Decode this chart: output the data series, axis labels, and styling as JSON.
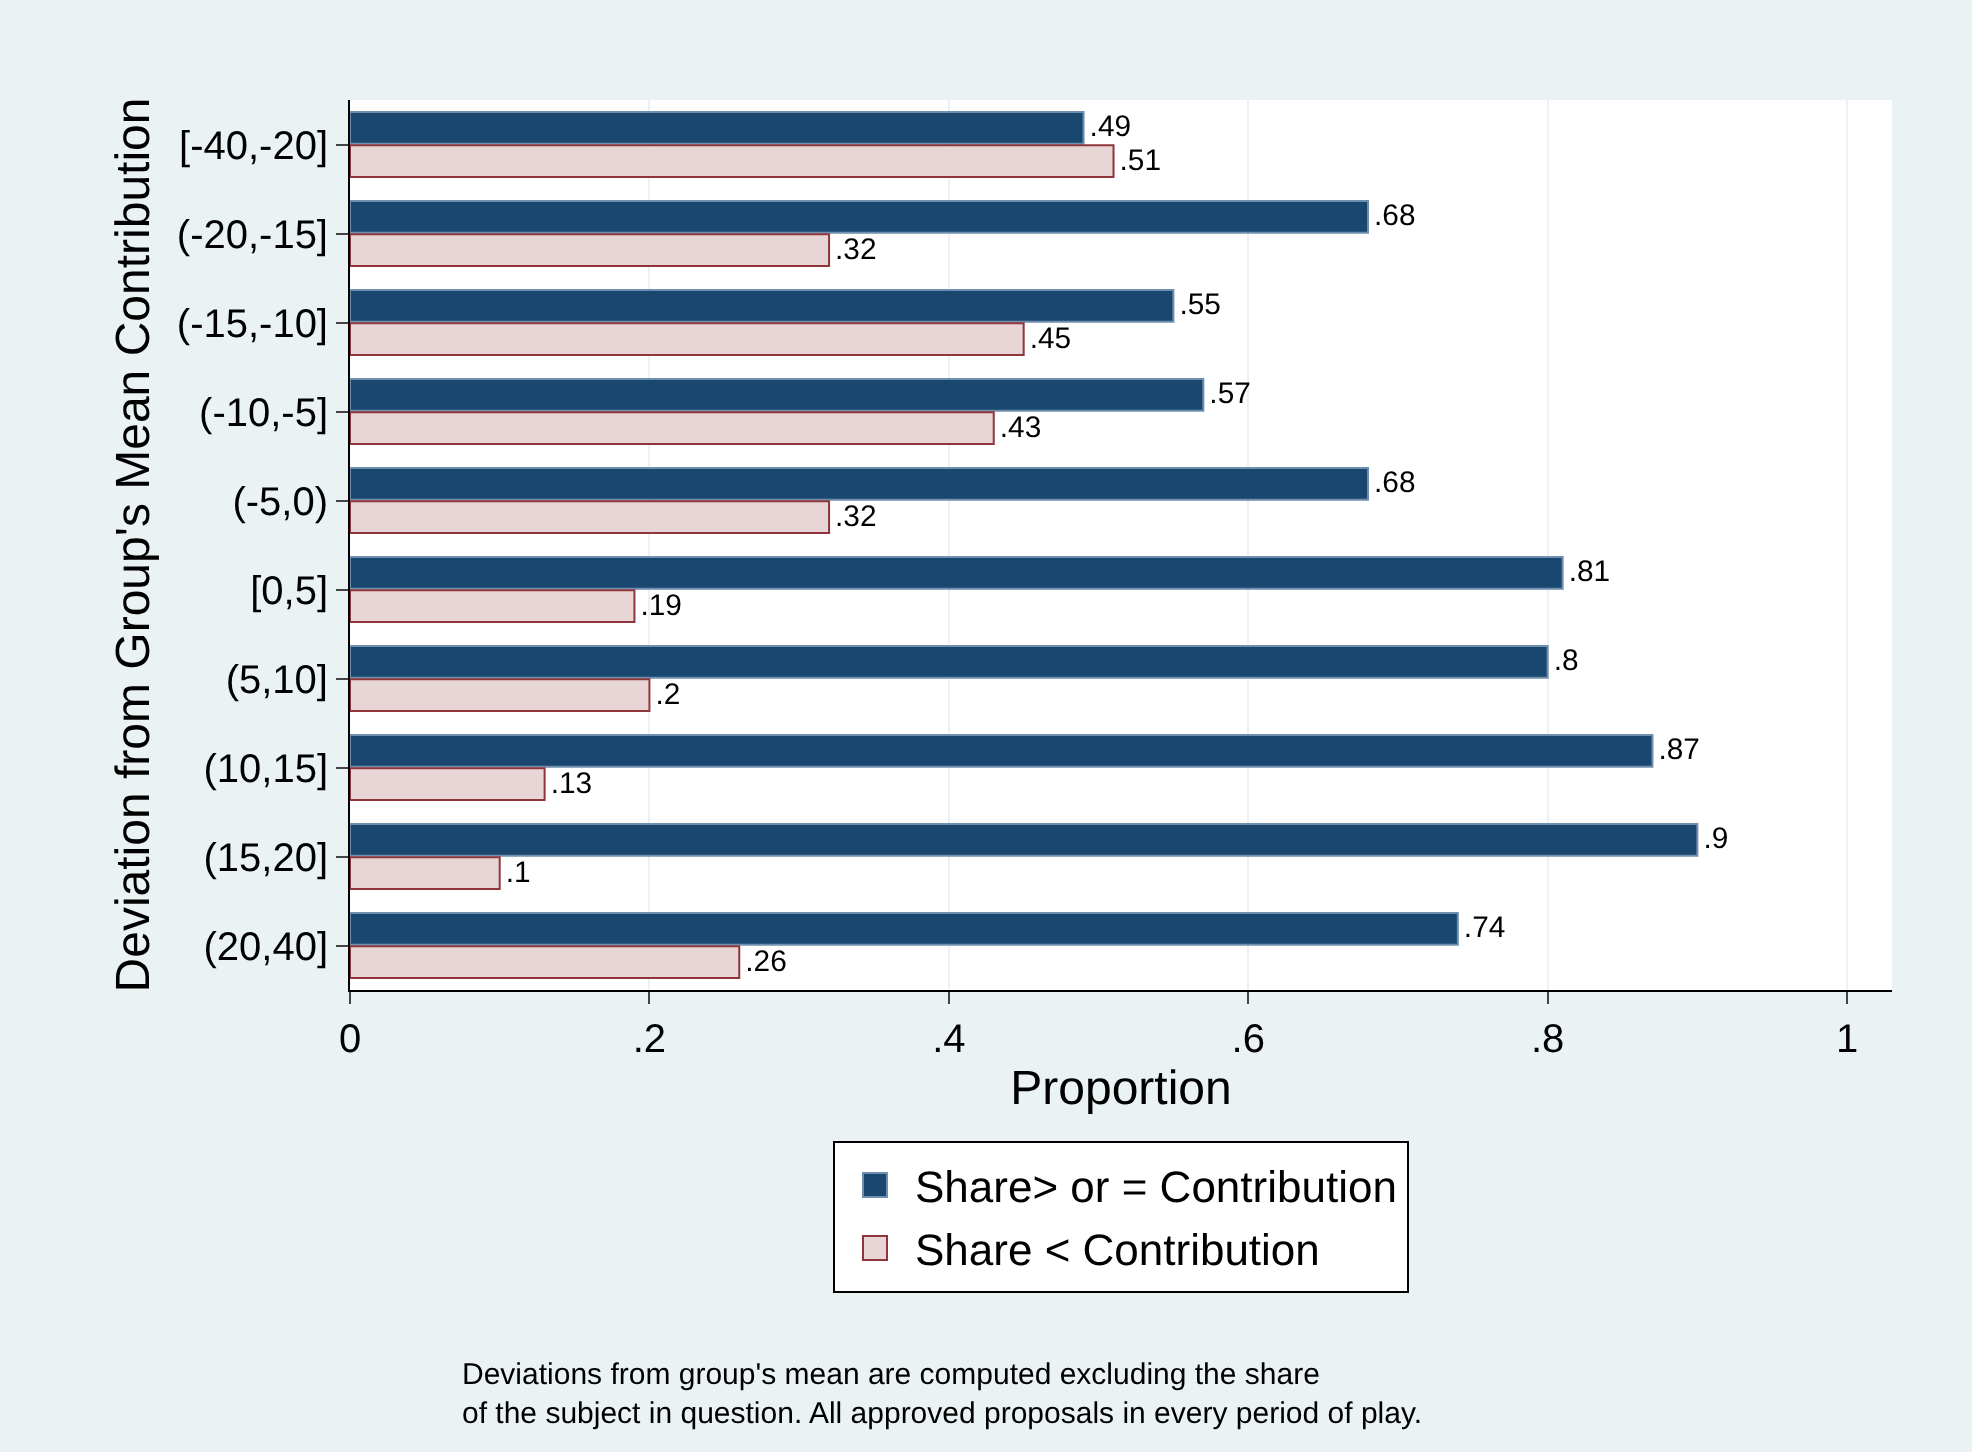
{
  "chart_data": {
    "type": "bar",
    "orientation": "horizontal",
    "xlabel": "Proportion",
    "ylabel": "Deviation from Group's Mean Contribution",
    "categories": [
      "[-40,-20]",
      "(-20,-15]",
      "(-15,-10]",
      "(-10,-5]",
      "(-5,0)",
      "[0,5]",
      "(5,10]",
      "(10,15]",
      "(15,20]",
      "(20,40]"
    ],
    "series": [
      {
        "name": "Share> or = Contribution",
        "color": "#1a476f",
        "values": [
          0.49,
          0.68,
          0.55,
          0.57,
          0.68,
          0.81,
          0.8,
          0.87,
          0.9,
          0.74
        ],
        "value_labels": [
          ".49",
          ".68",
          ".55",
          ".57",
          ".68",
          ".81",
          ".8",
          ".87",
          ".9",
          ".74"
        ]
      },
      {
        "name": "Share < Contribution",
        "color": "#e8d6d6",
        "values": [
          0.51,
          0.32,
          0.45,
          0.43,
          0.32,
          0.19,
          0.2,
          0.13,
          0.1,
          0.26
        ],
        "value_labels": [
          ".51",
          ".32",
          ".45",
          ".43",
          ".32",
          ".19",
          ".2",
          ".13",
          ".1",
          ".26"
        ]
      }
    ],
    "xlim": [
      0,
      1.03
    ],
    "xticks": [
      0,
      {
        "value": 0.2,
        "label": ".2"
      },
      {
        "value": 0.4,
        "label": ".4"
      },
      {
        "value": 0.6,
        "label": ".6"
      },
      {
        "value": 0.8,
        "label": ".8"
      },
      1
    ],
    "grid": "x",
    "legend": "bottom",
    "annotations": [
      "Deviations from group's mean are computed excluding the share\nof the subject in question. All approved proposals in every period of play."
    ]
  }
}
